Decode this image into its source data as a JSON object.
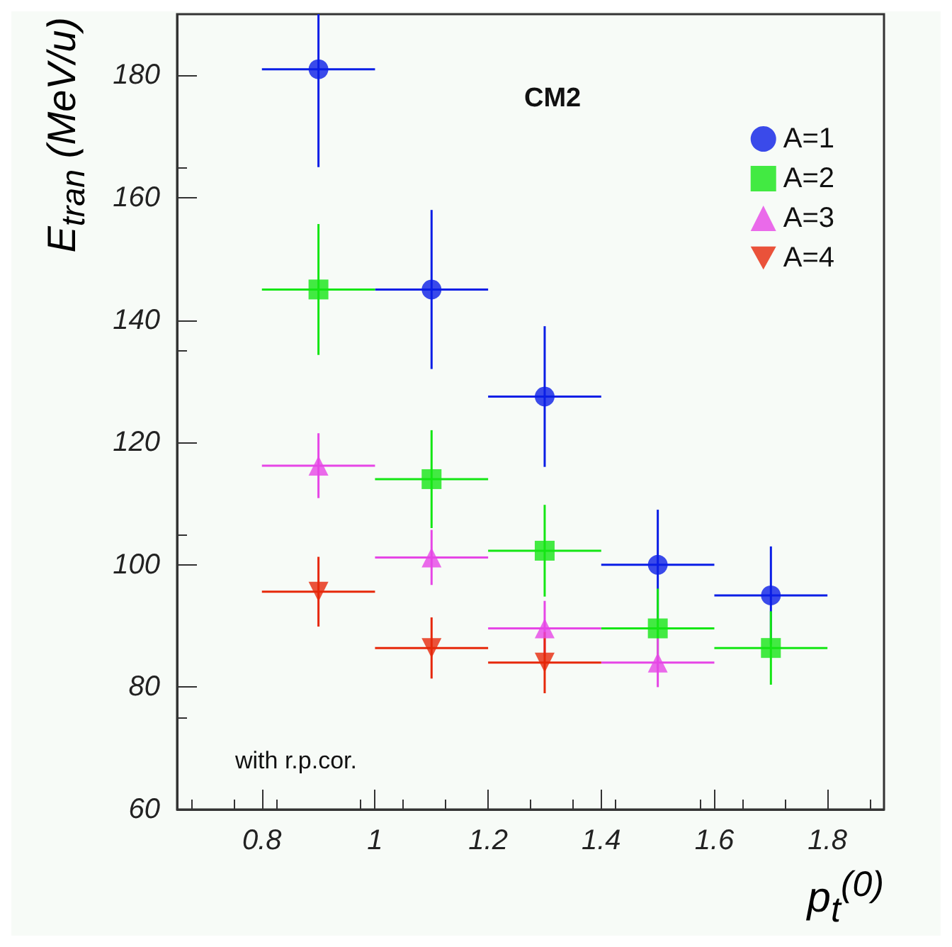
{
  "chart_data": {
    "type": "scatter",
    "annotations": [
      "CM2",
      "with r.p.cor."
    ],
    "xlabel": "p$_{t}$$^{(0)}$",
    "ylabel": "E$_{tran}$ (MeV/u)",
    "xlim": [
      0.65,
      1.9
    ],
    "xticks": [
      0.8,
      1,
      1.2,
      1.4,
      1.6,
      1.8
    ],
    "ylim": [
      60,
      190
    ],
    "yticks": [
      60,
      80,
      100,
      120,
      140,
      160,
      180
    ],
    "grid": false,
    "legend": "top right",
    "series": [
      {
        "name": "A=1",
        "color": "#0a1ee6",
        "marker": "circle",
        "x": [
          0.9,
          1.1,
          1.3,
          1.5,
          1.7
        ],
        "values": [
          181,
          145,
          127.5,
          100,
          95
        ],
        "errors": [
          [
            165,
            190
          ],
          13,
          11.5,
          9,
          8
        ],
        "xerrors": [
          0.1,
          0.1,
          0.1,
          0.1,
          0.1
        ]
      },
      {
        "name": "A=2",
        "color": "#14e614",
        "marker": "square",
        "x": [
          0.9,
          1.1,
          1.3,
          1.5,
          1.7
        ],
        "values": [
          145,
          114,
          102.3,
          89.6,
          86.4
        ],
        "errors": [
          10.7,
          8,
          7.5,
          6.5,
          6
        ],
        "xerrors": [
          0.1,
          0.1,
          0.1,
          0.1,
          0.1
        ]
      },
      {
        "name": "A=3",
        "color": "#e646e6",
        "marker": "triangle",
        "x": [
          0.9,
          1.1,
          1.3,
          1.5
        ],
        "values": [
          116.2,
          101.2,
          89.6,
          84
        ],
        "errors": [
          5.3,
          4.5,
          4.5,
          4
        ],
        "xerrors": [
          0.1,
          0.1,
          0.1,
          0.1
        ]
      },
      {
        "name": "A=4",
        "color": "#e6280a",
        "marker": "triangle-down",
        "x": [
          0.9,
          1.1,
          1.3
        ],
        "values": [
          95.6,
          86.4,
          84
        ],
        "errors": [
          5.7,
          5,
          5
        ],
        "xerrors": [
          0.1,
          0.1,
          0.1
        ]
      }
    ]
  }
}
